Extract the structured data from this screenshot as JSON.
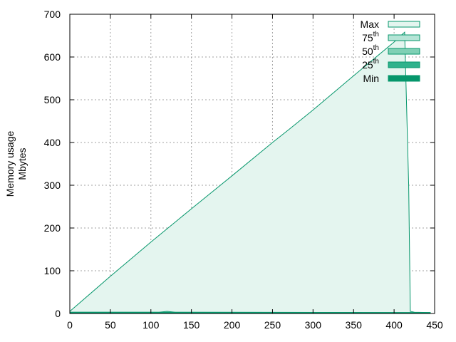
{
  "chart_data": {
    "type": "area",
    "title": "",
    "xlabel": "",
    "ylabel_lines": [
      "Memory usage",
      "Mbytes"
    ],
    "xlim": [
      0,
      450
    ],
    "ylim": [
      0,
      700
    ],
    "x_ticks": [
      0,
      50,
      100,
      150,
      200,
      250,
      300,
      350,
      400,
      450
    ],
    "y_ticks": [
      0,
      100,
      200,
      300,
      400,
      500,
      600,
      700
    ],
    "grid": true,
    "legend_placement": "top-right",
    "series": [
      {
        "name": "Max",
        "legend_main": "Max",
        "legend_sup": "",
        "fill": "#e4f5ef",
        "x": [
          0,
          50,
          100,
          150,
          200,
          250,
          270,
          300,
          350,
          400,
          410,
          413,
          418,
          420,
          425,
          445
        ],
        "y": [
          5,
          87,
          167,
          245,
          322,
          400,
          430,
          476,
          556,
          635,
          653,
          658,
          300,
          5,
          3,
          2
        ]
      },
      {
        "name": "75th",
        "legend_main": "75",
        "legend_sup": "th",
        "fill": "#b5e4d6",
        "x": [
          0,
          110,
          115,
          120,
          125,
          130,
          445
        ],
        "y": [
          3,
          3,
          4,
          5,
          4,
          3,
          2
        ]
      },
      {
        "name": "50th",
        "legend_main": "50",
        "legend_sup": "th",
        "fill": "#7fd0b5",
        "x": [
          0,
          445
        ],
        "y": [
          3,
          2
        ]
      },
      {
        "name": "25th",
        "legend_main": "25",
        "legend_sup": "th",
        "fill": "#2fb28c",
        "x": [
          0,
          445
        ],
        "y": [
          2.5,
          2
        ]
      },
      {
        "name": "Min",
        "legend_main": "Min",
        "legend_sup": "",
        "fill": "#05966b",
        "x": [
          0,
          445
        ],
        "y": [
          2,
          1.5
        ]
      }
    ],
    "line_color": "#05966b"
  }
}
